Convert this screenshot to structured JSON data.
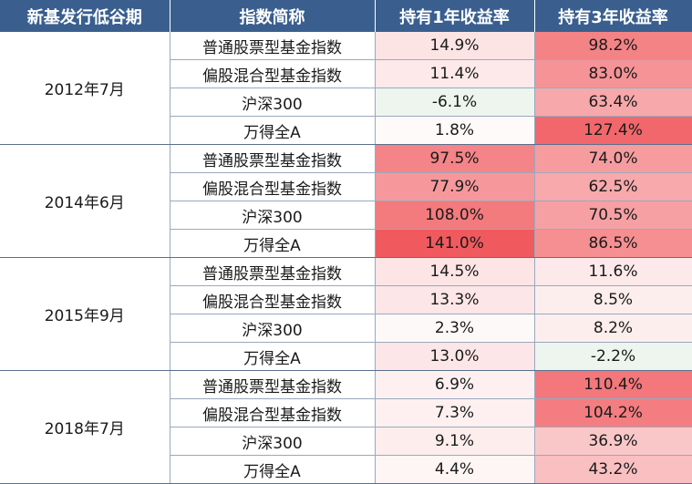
{
  "header": {
    "col1": "新基发行低谷期",
    "col2": "指数简称",
    "col3": "持有1年收益率",
    "col4": "持有3年收益率"
  },
  "groups": [
    {
      "period": "2012年7月",
      "rows": [
        {
          "index": "普通股票型基金指数",
          "y1": "14.9%",
          "y3": "98.2%"
        },
        {
          "index": "偏股混合型基金指数",
          "y1": "11.4%",
          "y3": "83.0%"
        },
        {
          "index": "沪深300",
          "y1": "-6.1%",
          "y3": "63.4%"
        },
        {
          "index": "万得全A",
          "y1": "1.8%",
          "y3": "127.4%"
        }
      ]
    },
    {
      "period": "2014年6月",
      "rows": [
        {
          "index": "普通股票型基金指数",
          "y1": "97.5%",
          "y3": "74.0%"
        },
        {
          "index": "偏股混合型基金指数",
          "y1": "77.9%",
          "y3": "62.5%"
        },
        {
          "index": "沪深300",
          "y1": "108.0%",
          "y3": "70.5%"
        },
        {
          "index": "万得全A",
          "y1": "141.0%",
          "y3": "86.5%"
        }
      ]
    },
    {
      "period": "2015年9月",
      "rows": [
        {
          "index": "普通股票型基金指数",
          "y1": "14.5%",
          "y3": "11.6%"
        },
        {
          "index": "偏股混合型基金指数",
          "y1": "13.3%",
          "y3": "8.5%"
        },
        {
          "index": "沪深300",
          "y1": "2.3%",
          "y3": "8.2%"
        },
        {
          "index": "万得全A",
          "y1": "13.0%",
          "y3": "-2.2%"
        }
      ]
    },
    {
      "period": "2018年7月",
      "rows": [
        {
          "index": "普通股票型基金指数",
          "y1": "6.9%",
          "y3": "110.4%"
        },
        {
          "index": "偏股混合型基金指数",
          "y1": "7.3%",
          "y3": "104.2%"
        },
        {
          "index": "沪深300",
          "y1": "9.1%",
          "y3": "36.9%"
        },
        {
          "index": "万得全A",
          "y1": "4.4%",
          "y3": "43.2%"
        }
      ]
    }
  ],
  "colors": {
    "header_bg": "#3a5f8f",
    "positive_max": "#f05a5e",
    "negative_tint": "#edf5ee"
  }
}
